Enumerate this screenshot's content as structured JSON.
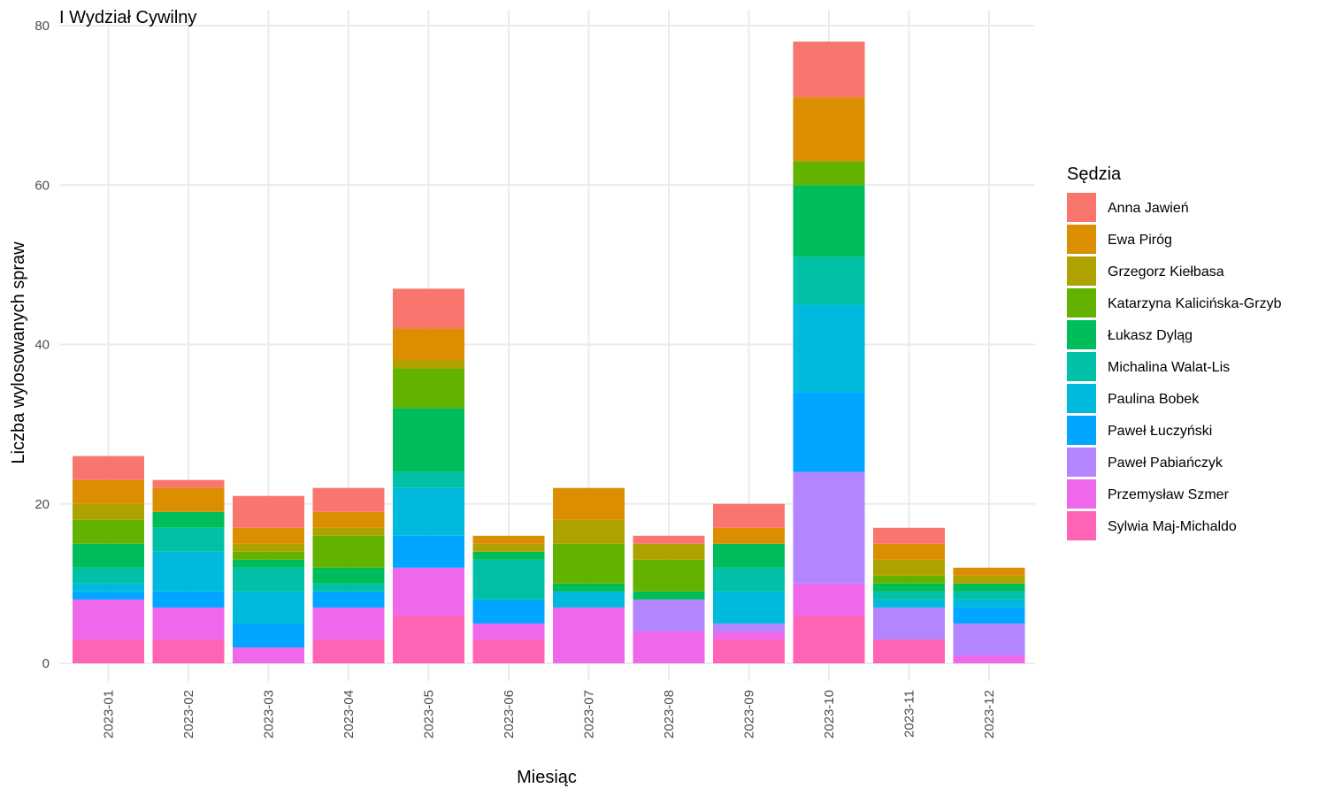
{
  "chart_data": {
    "type": "bar",
    "stacked": true,
    "title": "I Wydział Cywilny",
    "xlabel": "Miesiąc",
    "ylabel": "Liczba wylosowanych spraw",
    "ylim": [
      0,
      80
    ],
    "yticks": [
      0,
      20,
      40,
      60,
      80
    ],
    "grid": true,
    "legend_title": "Sędzia",
    "legend_position": "right",
    "categories": [
      "2023-01",
      "2023-02",
      "2023-03",
      "2023-04",
      "2023-05",
      "2023-06",
      "2023-07",
      "2023-08",
      "2023-09",
      "2023-10",
      "2023-11",
      "2023-12"
    ],
    "series": [
      {
        "name": "Anna Jawień",
        "color": "#F8766D",
        "values": [
          3,
          1,
          4,
          3,
          5,
          0,
          0,
          1,
          3,
          7,
          2,
          0
        ]
      },
      {
        "name": "Ewa Piróg",
        "color": "#DB8E00",
        "values": [
          3,
          3,
          2,
          2,
          4,
          1,
          4,
          0,
          2,
          8,
          2,
          1
        ]
      },
      {
        "name": "Grzegorz Kiełbasa",
        "color": "#AEA200",
        "values": [
          2,
          0,
          1,
          1,
          1,
          1,
          3,
          2,
          0,
          0,
          2,
          1
        ]
      },
      {
        "name": "Katarzyna Kalicińska-Grzyb",
        "color": "#64B200",
        "values": [
          3,
          0,
          1,
          4,
          5,
          0,
          5,
          4,
          0,
          3,
          1,
          0
        ]
      },
      {
        "name": "Łukasz Dyląg",
        "color": "#00BD5C",
        "values": [
          3,
          2,
          1,
          2,
          8,
          1,
          1,
          1,
          3,
          9,
          1,
          1
        ]
      },
      {
        "name": "Michalina Walat-Lis",
        "color": "#00C1A7",
        "values": [
          2,
          3,
          3,
          1,
          2,
          5,
          0,
          0,
          3,
          6,
          1,
          1
        ]
      },
      {
        "name": "Paulina Bobek",
        "color": "#00BADE",
        "values": [
          1,
          5,
          4,
          0,
          6,
          0,
          2,
          0,
          4,
          11,
          1,
          1
        ]
      },
      {
        "name": "Paweł Łuczyński",
        "color": "#00A6FF",
        "values": [
          1,
          2,
          3,
          2,
          4,
          3,
          0,
          0,
          0,
          10,
          0,
          2
        ]
      },
      {
        "name": "Paweł Pabiańczyk",
        "color": "#B385FF",
        "values": [
          0,
          0,
          0,
          0,
          0,
          0,
          0,
          4,
          1,
          14,
          4,
          4
        ]
      },
      {
        "name": "Przemysław Szmer",
        "color": "#EF67EB",
        "values": [
          5,
          4,
          2,
          4,
          6,
          2,
          7,
          4,
          1,
          4,
          0,
          1
        ]
      },
      {
        "name": "Sylwia Maj-Michaldo",
        "color": "#FF63B6",
        "values": [
          3,
          3,
          0,
          3,
          6,
          3,
          0,
          0,
          3,
          6,
          3,
          0
        ]
      }
    ]
  }
}
